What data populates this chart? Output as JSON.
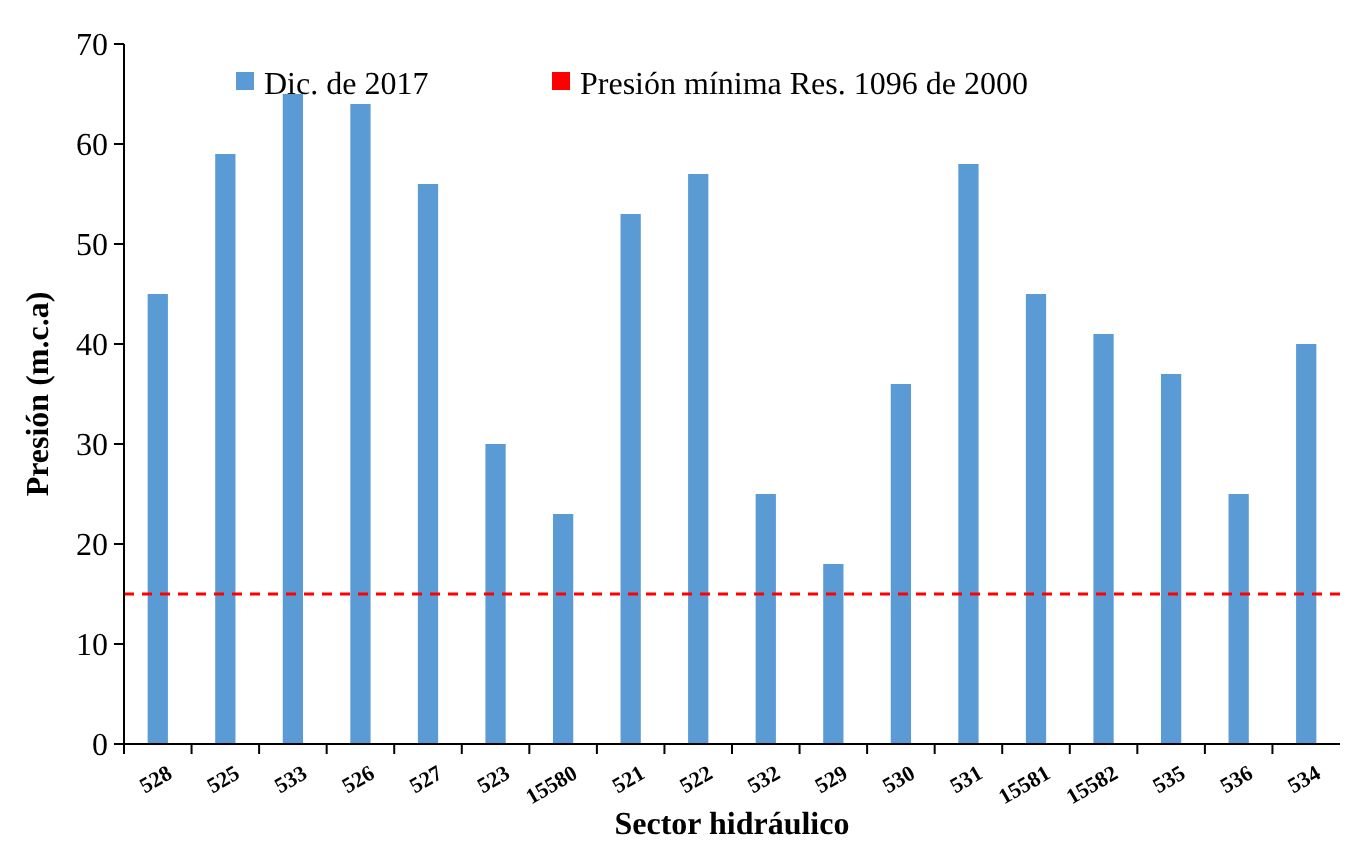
{
  "chart_data": {
    "type": "bar",
    "xlabel": "Sector hidráulico",
    "ylabel": "Presión (m.c.a)",
    "categories": [
      "528",
      "525",
      "533",
      "526",
      "527",
      "523",
      "15580",
      "521",
      "522",
      "532",
      "529",
      "530",
      "531",
      "15581",
      "15582",
      "535",
      "536",
      "534"
    ],
    "series": [
      {
        "name": "Dic. de 2017",
        "color": "#5b9bd5",
        "values": [
          45,
          59,
          65,
          64,
          56,
          30,
          23,
          53,
          57,
          25,
          18,
          36,
          58,
          45,
          41,
          37,
          25,
          40
        ]
      }
    ],
    "ylim": [
      0,
      70
    ],
    "yticks": [
      0,
      10,
      20,
      30,
      40,
      50,
      60,
      70
    ],
    "grid": false,
    "legend": "top",
    "ref_lines": [
      {
        "axis": "y",
        "value": 15,
        "label": "Presión mínima Res. 1096 de 2000",
        "color": "#ff0000",
        "line_style": "dashed"
      }
    ]
  }
}
